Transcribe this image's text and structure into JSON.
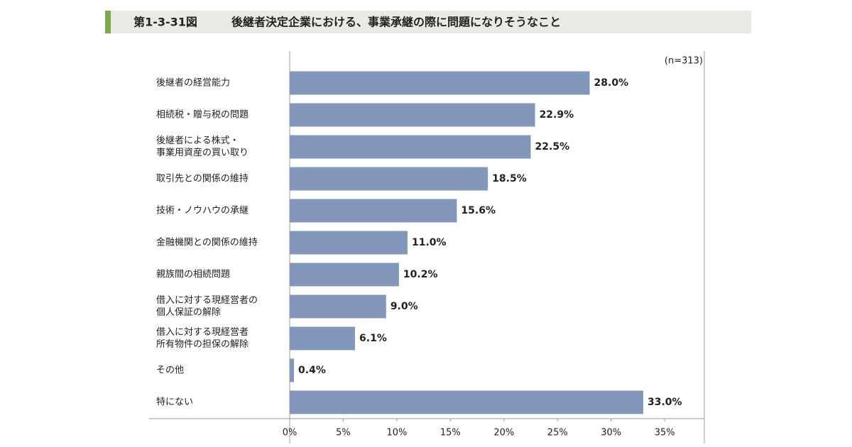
{
  "chart_data": {
    "type": "bar",
    "orientation": "horizontal",
    "figure_label": "第1-3-31図",
    "title": "後継者決定企業における、事業承継の際に問題になりそうなこと",
    "note": "(n=313)",
    "categories": [
      "後継者の経営能力",
      "相続税・贈与税の問題",
      "後継者による株式・\n事業用資産の買い取り",
      "取引先との関係の維持",
      "技術・ノウハウの承継",
      "金融機関との関係の維持",
      "親族間の相続問題",
      "借入に対する現経営者の\n個人保証の解除",
      "借入に対する現経営者\n所有物件の担保の解除",
      "その他",
      "特にない"
    ],
    "values": [
      28.0,
      22.9,
      22.5,
      18.5,
      15.6,
      11.0,
      10.2,
      9.0,
      6.1,
      0.4,
      33.0
    ],
    "value_labels": [
      "28.0%",
      "22.9%",
      "22.5%",
      "18.5%",
      "15.6%",
      "11.0%",
      "10.2%",
      "9.0%",
      "6.1%",
      "0.4%",
      "33.0%"
    ],
    "color": "#8397bd",
    "xlim": [
      0,
      38.7
    ],
    "xticks": [
      {
        "value": 0,
        "label": "0%"
      },
      {
        "value": 5,
        "label": "5%"
      },
      {
        "value": 10,
        "label": "10%"
      },
      {
        "value": 15,
        "label": "15%"
      },
      {
        "value": 20,
        "label": "20%"
      },
      {
        "value": 25,
        "label": "25%"
      },
      {
        "value": 30,
        "label": "30%"
      },
      {
        "value": 35,
        "label": "35%"
      }
    ],
    "grid": false
  }
}
